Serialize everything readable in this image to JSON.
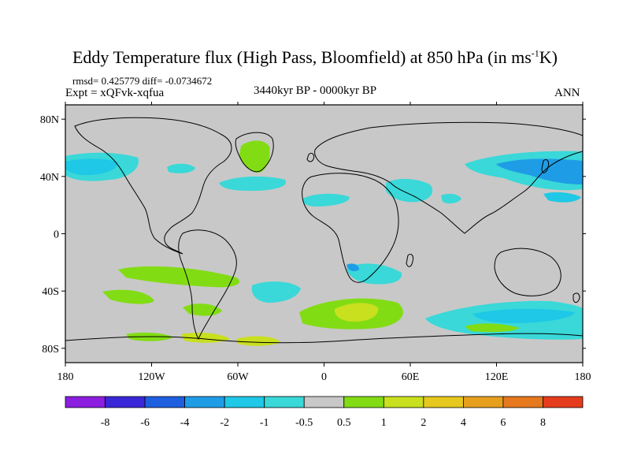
{
  "title": "Eddy Temperature flux (High Pass, Bloomfield) at 850 hPa (in ms",
  "title_sup": "-1",
  "title_tail": "K)",
  "stats": "rmsd= 0.425779 diff= -0.0734672",
  "experiment": "Expt = xQFvk-xqfua",
  "period": "3440kyr BP - 0000kyr BP",
  "season": "ANN",
  "map": {
    "lon_ticks": [
      {
        "lon": -180,
        "label": "180"
      },
      {
        "lon": -120,
        "label": "120W"
      },
      {
        "lon": -60,
        "label": "60W"
      },
      {
        "lon": 0,
        "label": "0"
      },
      {
        "lon": 60,
        "label": "60E"
      },
      {
        "lon": 120,
        "label": "120E"
      },
      {
        "lon": 180,
        "label": "180"
      }
    ],
    "lat_ticks": [
      {
        "lat": 80,
        "label": "80N"
      },
      {
        "lat": 40,
        "label": "40N"
      },
      {
        "lat": 0,
        "label": "0"
      },
      {
        "lat": -40,
        "label": "40S"
      },
      {
        "lat": -80,
        "label": "80S"
      }
    ]
  },
  "colorbar": {
    "colors": [
      "#8c1ee0",
      "#3a28d8",
      "#1e5fe0",
      "#1e9de6",
      "#1ec8e6",
      "#3ad8d8",
      "#c8c8c8",
      "#82dc14",
      "#c8e01e",
      "#e6c81e",
      "#e6a01e",
      "#e6781e",
      "#e63c1e"
    ],
    "labels": [
      "-8",
      "-6",
      "-4",
      "-2",
      "-1",
      "-0.5",
      "0.5",
      "1",
      "2",
      "4",
      "6",
      "8"
    ]
  }
}
